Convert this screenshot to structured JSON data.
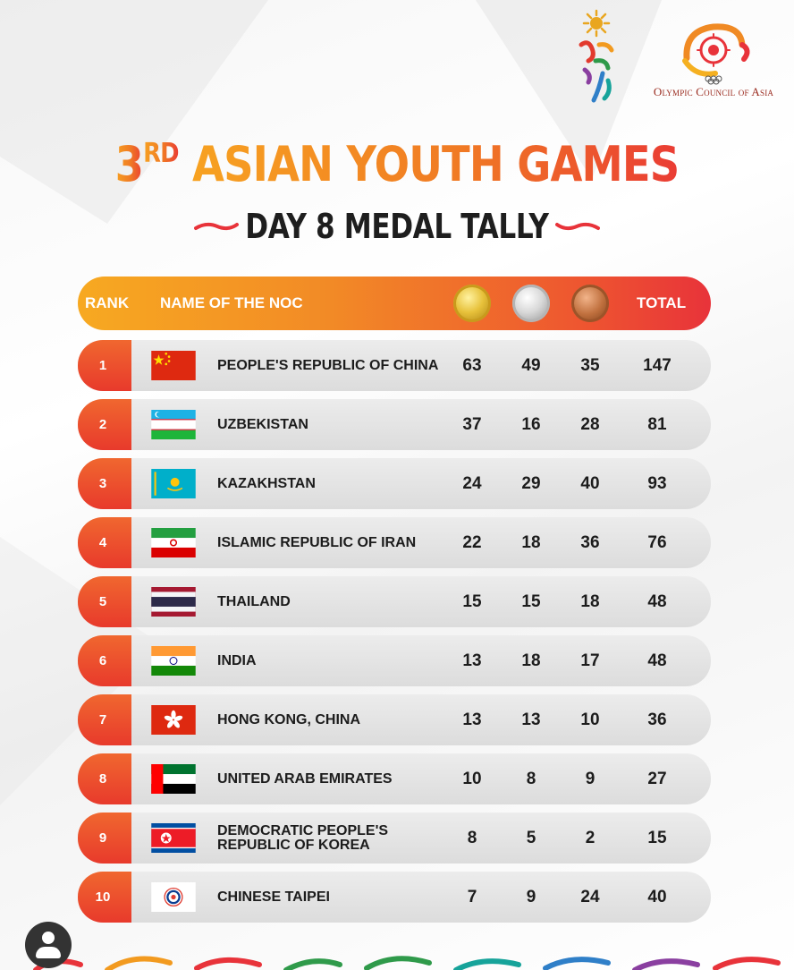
{
  "logos": {
    "oca_text": "Olympic Council of Asia"
  },
  "title": {
    "ordinal": "3",
    "ordinal_suffix": "RD",
    "main": "ASIAN YOUTH GAMES",
    "subtitle": "DAY 8 MEDAL TALLY"
  },
  "colors": {
    "accent_orange": "#f28a26",
    "accent_red": "#e8333a",
    "title_yellow": "#f7a221"
  },
  "table": {
    "headers": {
      "rank": "RANK",
      "name": "NAME OF THE NOC",
      "gold_icon": "gold-medal-icon",
      "silver_icon": "silver-medal-icon",
      "bronze_icon": "bronze-medal-icon",
      "total": "TOTAL"
    },
    "rows": [
      {
        "rank": "1",
        "noc": "PEOPLE'S REPUBLIC OF CHINA",
        "flag": "china-flag-icon",
        "gold": "63",
        "silver": "49",
        "bronze": "35",
        "total": "147"
      },
      {
        "rank": "2",
        "noc": "UZBEKISTAN",
        "flag": "uzbekistan-flag-icon",
        "gold": "37",
        "silver": "16",
        "bronze": "28",
        "total": "81"
      },
      {
        "rank": "3",
        "noc": "KAZAKHSTAN",
        "flag": "kazakhstan-flag-icon",
        "gold": "24",
        "silver": "29",
        "bronze": "40",
        "total": "93"
      },
      {
        "rank": "4",
        "noc": "ISLAMIC REPUBLIC OF IRAN",
        "flag": "iran-flag-icon",
        "gold": "22",
        "silver": "18",
        "bronze": "36",
        "total": "76"
      },
      {
        "rank": "5",
        "noc": "THAILAND",
        "flag": "thailand-flag-icon",
        "gold": "15",
        "silver": "15",
        "bronze": "18",
        "total": "48"
      },
      {
        "rank": "6",
        "noc": "INDIA",
        "flag": "india-flag-icon",
        "gold": "13",
        "silver": "18",
        "bronze": "17",
        "total": "48"
      },
      {
        "rank": "7",
        "noc": "HONG KONG, CHINA",
        "flag": "hong-kong-flag-icon",
        "gold": "13",
        "silver": "13",
        "bronze": "10",
        "total": "36"
      },
      {
        "rank": "8",
        "noc": "UNITED ARAB EMIRATES",
        "flag": "uae-flag-icon",
        "gold": "10",
        "silver": "8",
        "bronze": "9",
        "total": "27"
      },
      {
        "rank": "9",
        "noc": "DEMOCRATIC PEOPLE'S REPUBLIC OF KOREA",
        "noc_line1": "DEMOCRATIC PEOPLE'S",
        "noc_line2": "REPUBLIC OF KOREA",
        "flag": "dpr-korea-flag-icon",
        "gold": "8",
        "silver": "5",
        "bronze": "2",
        "total": "15"
      },
      {
        "rank": "10",
        "noc": "CHINESE TAIPEI",
        "flag": "chinese-taipei-flag-icon",
        "gold": "7",
        "silver": "9",
        "bronze": "24",
        "total": "40"
      }
    ]
  }
}
